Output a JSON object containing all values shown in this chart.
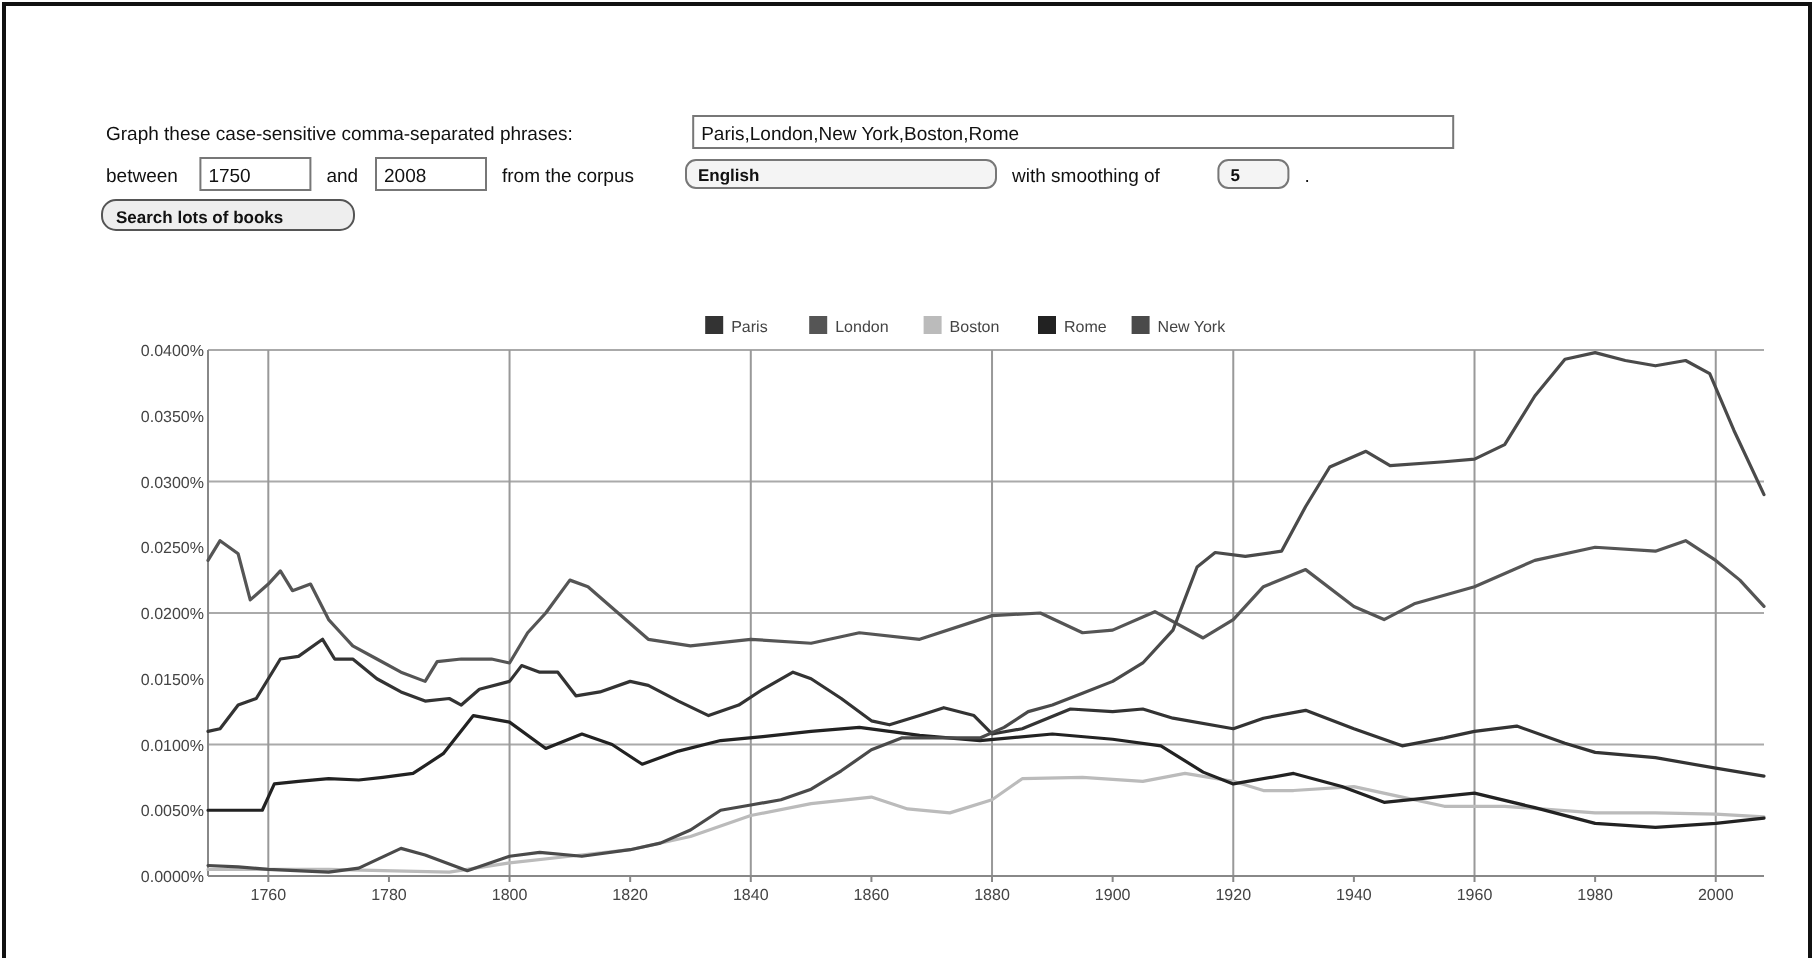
{
  "chart_data": {
    "type": "line",
    "annotations": [
      "Graph these case-sensitive comma-separated phrases:",
      "Paris,London,New York,Boston,Rome",
      "between",
      "1750",
      "and",
      "2008",
      "from the corpus",
      "English",
      "with smoothing of",
      "5",
      ".",
      "Search lots of books"
    ],
    "xlim": [
      1750,
      2008
    ],
    "xticks": [
      1760,
      1780,
      1800,
      1820,
      1840,
      1860,
      1880,
      1900,
      1920,
      1940,
      1960,
      1980,
      2000
    ],
    "ylim": [
      0,
      0.04
    ],
    "yticks": [
      {
        "value": 0,
        "label": "0.0000%"
      },
      {
        "value": 0.005,
        "label": "0.0050%"
      },
      {
        "value": 0.01,
        "label": "0.0100%"
      },
      {
        "value": 0.015,
        "label": "0.0150%"
      },
      {
        "value": 0.02,
        "label": "0.0200%"
      },
      {
        "value": 0.025,
        "label": "0.0250%"
      },
      {
        "value": 0.03,
        "label": "0.0300%"
      },
      {
        "value": 0.035,
        "label": "0.0350%"
      },
      {
        "value": 0.04,
        "label": "0.0400%"
      }
    ],
    "grid": true,
    "legend": "top",
    "marker": "none",
    "line_style": "solid",
    "series": [
      {
        "name": "Paris",
        "color": "#333333",
        "x": [
          1750,
          1752,
          1755,
          1758,
          1760,
          1762,
          1765,
          1769,
          1771,
          1774,
          1778,
          1782,
          1786,
          1790,
          1792,
          1795,
          1800,
          1802,
          1805,
          1808,
          1811,
          1815,
          1820,
          1823,
          1828,
          1833,
          1838,
          1842,
          1847,
          1850,
          1855,
          1860,
          1863,
          1868,
          1872,
          1877,
          1880,
          1885,
          1893,
          1900,
          1905,
          1910,
          1920,
          1925,
          1932,
          1940,
          1948,
          1955,
          1960,
          1967,
          1975,
          1980,
          1990,
          2000,
          2008
        ],
        "values": [
          0.011,
          0.0112,
          0.013,
          0.0135,
          0.015,
          0.0165,
          0.0167,
          0.018,
          0.0165,
          0.0165,
          0.015,
          0.014,
          0.0133,
          0.0135,
          0.013,
          0.0142,
          0.0148,
          0.016,
          0.0155,
          0.0155,
          0.0137,
          0.014,
          0.0148,
          0.0145,
          0.0133,
          0.0122,
          0.013,
          0.0142,
          0.0155,
          0.015,
          0.0135,
          0.0118,
          0.0115,
          0.0122,
          0.0128,
          0.0122,
          0.0108,
          0.0112,
          0.0127,
          0.0125,
          0.0127,
          0.012,
          0.0112,
          0.012,
          0.0126,
          0.0112,
          0.0099,
          0.0105,
          0.011,
          0.0114,
          0.0101,
          0.0094,
          0.009,
          0.0082,
          0.0076
        ]
      },
      {
        "name": "London",
        "color": "#555555",
        "x": [
          1750,
          1752,
          1755,
          1757,
          1760,
          1762,
          1764,
          1767,
          1770,
          1772,
          1774,
          1778,
          1782,
          1786,
          1788,
          1792,
          1797,
          1800,
          1803,
          1806,
          1810,
          1813,
          1818,
          1823,
          1830,
          1840,
          1850,
          1858,
          1868,
          1880,
          1888,
          1895,
          1900,
          1907,
          1915,
          1920,
          1925,
          1932,
          1940,
          1945,
          1950,
          1960,
          1970,
          1980,
          1990,
          1995,
          2000,
          2004,
          2008
        ],
        "values": [
          0.024,
          0.0255,
          0.0245,
          0.021,
          0.0222,
          0.0232,
          0.0217,
          0.0222,
          0.0195,
          0.0185,
          0.0175,
          0.0165,
          0.0155,
          0.0148,
          0.0163,
          0.0165,
          0.0165,
          0.0162,
          0.0185,
          0.02,
          0.0225,
          0.022,
          0.02,
          0.018,
          0.0175,
          0.018,
          0.0177,
          0.0185,
          0.018,
          0.0198,
          0.02,
          0.0185,
          0.0187,
          0.0201,
          0.0181,
          0.0195,
          0.022,
          0.0233,
          0.0205,
          0.0195,
          0.0207,
          0.022,
          0.024,
          0.025,
          0.0247,
          0.0255,
          0.024,
          0.0225,
          0.0205
        ]
      },
      {
        "name": "Boston",
        "color": "#bbbbbb",
        "x": [
          1750,
          1770,
          1790,
          1800,
          1810,
          1820,
          1830,
          1840,
          1850,
          1860,
          1866,
          1873,
          1880,
          1885,
          1895,
          1905,
          1912,
          1920,
          1925,
          1930,
          1940,
          1948,
          1955,
          1965,
          1980,
          1990,
          2000,
          2008
        ],
        "values": [
          0.0005,
          0.0005,
          0.0003,
          0.001,
          0.0015,
          0.002,
          0.003,
          0.0046,
          0.0055,
          0.006,
          0.0051,
          0.0048,
          0.0058,
          0.0074,
          0.0075,
          0.0072,
          0.0078,
          0.0072,
          0.0065,
          0.0065,
          0.0068,
          0.006,
          0.0053,
          0.0053,
          0.0048,
          0.0048,
          0.0047,
          0.0045
        ]
      },
      {
        "name": "Rome",
        "color": "#222222",
        "x": [
          1750,
          1759,
          1761,
          1765,
          1770,
          1775,
          1779,
          1784,
          1789,
          1794,
          1800,
          1806,
          1812,
          1817,
          1822,
          1828,
          1835,
          1842,
          1850,
          1858,
          1868,
          1878,
          1890,
          1900,
          1908,
          1915,
          1920,
          1930,
          1938,
          1945,
          1960,
          1970,
          1980,
          1990,
          2000,
          2008
        ],
        "values": [
          0.005,
          0.005,
          0.007,
          0.0072,
          0.0074,
          0.0073,
          0.0075,
          0.0078,
          0.0093,
          0.0122,
          0.0117,
          0.0097,
          0.0108,
          0.01,
          0.0085,
          0.0095,
          0.0103,
          0.0106,
          0.011,
          0.0113,
          0.0107,
          0.0103,
          0.0108,
          0.0104,
          0.0099,
          0.0079,
          0.007,
          0.0078,
          0.0068,
          0.0056,
          0.0063,
          0.0052,
          0.004,
          0.0037,
          0.004,
          0.0044
        ]
      },
      {
        "name": "New York",
        "color": "#4a4a4a",
        "x": [
          1750,
          1755,
          1760,
          1770,
          1775,
          1782,
          1786,
          1793,
          1800,
          1805,
          1812,
          1820,
          1825,
          1830,
          1835,
          1840,
          1845,
          1850,
          1855,
          1860,
          1865,
          1870,
          1878,
          1882,
          1886,
          1890,
          1895,
          1900,
          1905,
          1910,
          1914,
          1917,
          1922,
          1928,
          1932,
          1936,
          1942,
          1946,
          1955,
          1960,
          1965,
          1970,
          1975,
          1980,
          1985,
          1990,
          1995,
          1999,
          2003,
          2008
        ],
        "values": [
          0.0008,
          0.0007,
          0.0005,
          0.0003,
          0.0006,
          0.0021,
          0.0016,
          0.0004,
          0.0015,
          0.0018,
          0.0015,
          0.002,
          0.0025,
          0.0035,
          0.005,
          0.0054,
          0.0058,
          0.0066,
          0.008,
          0.0096,
          0.0105,
          0.0105,
          0.0105,
          0.0113,
          0.0125,
          0.013,
          0.0139,
          0.0148,
          0.0162,
          0.0187,
          0.0235,
          0.0246,
          0.0243,
          0.0247,
          0.0281,
          0.0311,
          0.0323,
          0.0312,
          0.0315,
          0.0317,
          0.0328,
          0.0365,
          0.0393,
          0.0398,
          0.0392,
          0.0388,
          0.0392,
          0.0382,
          0.0339,
          0.029
        ]
      }
    ]
  }
}
